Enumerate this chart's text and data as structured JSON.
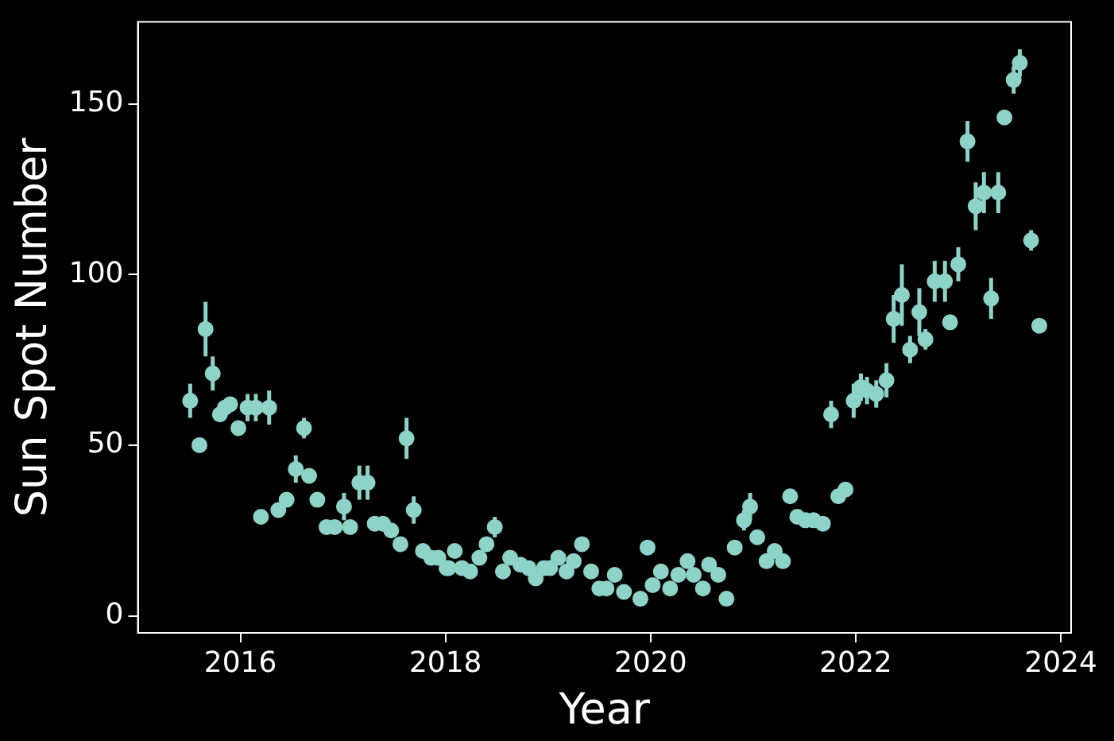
{
  "chart_data": {
    "type": "scatter",
    "xlabel": "Year",
    "ylabel": "Sun Spot Number",
    "marker": "circle",
    "grid": false,
    "legend": false,
    "xlim": [
      2015.0,
      2024.1
    ],
    "ylim": [
      -5,
      174
    ],
    "xticks": [
      2016,
      2018,
      2020,
      2022,
      2024
    ],
    "yticks": [
      0,
      50,
      100,
      150
    ],
    "series": [
      {
        "color": "#8dd3c7",
        "x": [
          2015.51,
          2015.6,
          2015.66,
          2015.73,
          2015.8,
          2015.85,
          2015.9,
          2015.98,
          2016.07,
          2016.15,
          2016.2,
          2016.28,
          2016.37,
          2016.45,
          2016.54,
          2016.62,
          2016.67,
          2016.75,
          2016.84,
          2016.92,
          2017.01,
          2017.07,
          2017.16,
          2017.24,
          2017.31,
          2017.39,
          2017.47,
          2017.56,
          2017.62,
          2017.69,
          2017.78,
          2017.86,
          2017.93,
          2018.01,
          2018.03,
          2018.09,
          2018.16,
          2018.24,
          2018.33,
          2018.4,
          2018.48,
          2018.56,
          2018.63,
          2018.73,
          2018.81,
          2018.88,
          2018.96,
          2019.02,
          2019.1,
          2019.18,
          2019.25,
          2019.33,
          2019.42,
          2019.5,
          2019.57,
          2019.65,
          2019.74,
          2019.9,
          2019.97,
          2020.02,
          2020.1,
          2020.19,
          2020.27,
          2020.36,
          2020.42,
          2020.51,
          2020.57,
          2020.66,
          2020.74,
          2020.82,
          2020.91,
          2020.97,
          2021.04,
          2021.13,
          2021.21,
          2021.29,
          2021.36,
          2021.43,
          2021.51,
          2021.59,
          2021.68,
          2021.76,
          2021.83,
          2021.9,
          2021.98,
          2022.05,
          2022.11,
          2022.2,
          2022.3,
          2022.37,
          2022.45,
          2022.53,
          2022.62,
          2022.68,
          2022.77,
          2022.87,
          2022.92,
          2023.0,
          2023.09,
          2023.17,
          2023.25,
          2023.32,
          2023.39,
          2023.45,
          2023.54,
          2023.6,
          2023.71,
          2023.79
        ],
        "values": [
          63,
          50,
          84,
          71,
          59,
          61,
          62,
          55,
          61,
          61,
          29,
          61,
          31,
          34,
          43,
          55,
          41,
          34,
          26,
          26,
          32,
          26,
          39,
          39,
          27,
          27,
          25,
          21,
          52,
          31,
          19,
          17,
          17,
          14,
          14,
          19,
          14,
          13,
          17,
          21,
          26,
          13,
          17,
          15,
          14,
          11,
          14,
          14,
          17,
          13,
          16,
          21,
          13,
          8,
          8,
          12,
          7,
          5,
          20,
          9,
          13,
          8,
          12,
          16,
          12,
          8,
          15,
          12,
          5,
          20,
          28,
          32,
          23,
          16,
          19,
          16,
          35,
          29,
          28,
          28,
          27,
          59,
          35,
          37,
          63,
          67,
          66,
          65,
          69,
          87,
          94,
          78,
          89,
          81,
          98,
          98,
          86,
          103,
          139,
          120,
          124,
          93,
          124,
          146,
          157,
          162,
          110,
          85
        ],
        "errors": [
          5,
          2,
          8,
          5,
          2,
          2,
          2,
          2,
          4,
          4,
          1,
          5,
          1,
          2,
          4,
          3,
          2,
          2,
          2,
          2,
          4,
          2,
          5,
          5,
          2,
          2,
          2,
          2,
          6,
          4,
          2,
          2,
          2,
          2,
          1,
          2,
          2,
          1,
          1,
          2,
          3,
          1,
          2,
          1,
          1,
          1,
          1,
          1,
          1,
          1,
          1,
          1,
          1,
          1,
          1,
          1,
          1,
          1,
          1,
          1,
          1,
          1,
          1,
          2,
          1,
          1,
          1,
          1,
          1,
          1,
          3,
          4,
          1,
          1,
          1,
          1,
          2,
          1,
          2,
          2,
          2,
          4,
          2,
          2,
          5,
          4,
          4,
          4,
          5,
          7,
          9,
          4,
          7,
          3,
          6,
          6,
          2,
          5,
          6,
          7,
          6,
          6,
          6,
          2,
          4,
          4,
          3,
          1
        ]
      }
    ]
  }
}
